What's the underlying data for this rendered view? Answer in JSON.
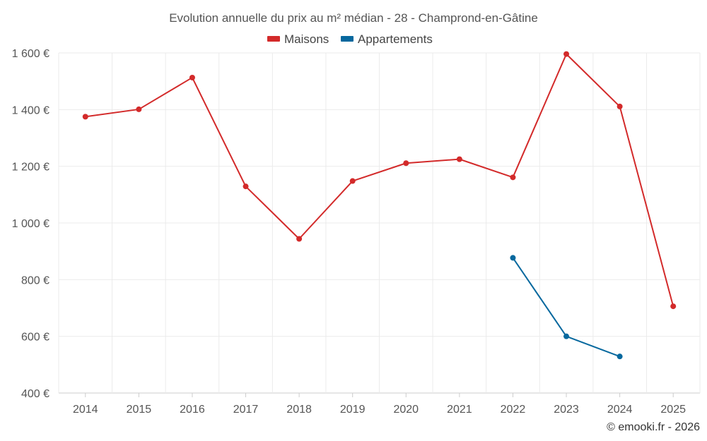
{
  "chart_data": {
    "type": "line",
    "title": "Evolution annuelle du prix au m² médian - 28 - Champrond-en-Gâtine",
    "categories": [
      "2014",
      "2015",
      "2016",
      "2017",
      "2018",
      "2019",
      "2020",
      "2021",
      "2022",
      "2023",
      "2024",
      "2025"
    ],
    "series": [
      {
        "name": "Maisons",
        "color": "#d32a2a",
        "values": [
          1375,
          1401,
          1513,
          1129,
          944,
          1148,
          1211,
          1225,
          1161,
          1596,
          1411,
          706
        ]
      },
      {
        "name": "Appartements",
        "color": "#06689e",
        "values": [
          null,
          null,
          null,
          null,
          null,
          null,
          null,
          null,
          877,
          600,
          529,
          null
        ]
      }
    ],
    "ylim": [
      400,
      1600
    ],
    "yticks": [
      400,
      600,
      800,
      1000,
      1200,
      1400,
      1600
    ],
    "ytick_labels": [
      "400 €",
      "600 €",
      "800 €",
      "1 000 €",
      "1 200 €",
      "1 400 €",
      "1 600 €"
    ],
    "xlabel": "",
    "ylabel": "",
    "legend_position": "top-center",
    "grid": true
  },
  "credit": "© emooki.fr - 2026"
}
